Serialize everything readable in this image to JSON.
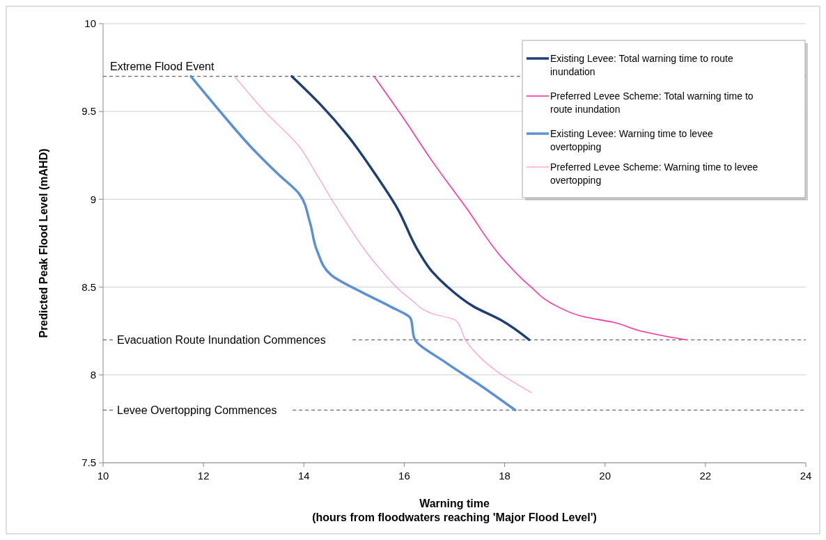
{
  "chart_data": {
    "type": "line",
    "xlabel": "Warning time\n(hours from floodwaters reaching 'Major Flood Level')",
    "ylabel": "Predicted Peak Flood Level  (mAHD)",
    "xlim": [
      10,
      24
    ],
    "xticks": [
      10,
      12,
      14,
      16,
      18,
      20,
      22,
      24
    ],
    "ylim": [
      7.5,
      10
    ],
    "yticks": [
      7.5,
      8,
      8.5,
      9,
      9.5,
      10
    ],
    "grid": "y",
    "legend": "top right",
    "marker": "none",
    "line_style": "solid",
    "series": [
      {
        "name": "Existing Levee: Total warning time to route inundation",
        "color": "#1f3f73",
        "x": [
          13.76,
          14.33,
          14.88,
          15.43,
          15.86,
          16.27,
          16.55,
          16.83,
          17.38,
          17.94,
          18.49
        ],
        "values": [
          9.7,
          9.54,
          9.36,
          9.14,
          8.95,
          8.71,
          8.59,
          8.51,
          8.39,
          8.31,
          8.2
        ]
      },
      {
        "name": "Preferred Levee Scheme: Total warning time to route inundation",
        "color": "#ff3399",
        "x": [
          15.4,
          15.99,
          16.55,
          17.24,
          17.94,
          18.49,
          19.05,
          19.6,
          20.16,
          20.71,
          21.61
        ],
        "values": [
          9.7,
          9.46,
          9.22,
          8.95,
          8.67,
          8.51,
          8.39,
          8.33,
          8.3,
          8.25,
          8.2
        ]
      },
      {
        "name": "Existing Levee: Warning time to levee overtopping",
        "color": "#5b8fd6",
        "x": [
          11.75,
          12.39,
          12.94,
          13.5,
          13.91,
          14.12,
          14.26,
          14.54,
          15.16,
          15.72,
          16.13,
          16.2,
          16.83,
          17.52,
          18.21
        ],
        "values": [
          9.7,
          9.48,
          9.3,
          9.14,
          9.03,
          8.87,
          8.71,
          8.57,
          8.47,
          8.39,
          8.32,
          8.21,
          8.07,
          7.94,
          7.8
        ]
      },
      {
        "name": "Preferred Levee Scheme: Warning time to levee overtopping",
        "color": "#ff99cc",
        "x": [
          12.62,
          13.22,
          13.91,
          14.26,
          14.75,
          15.44,
          16.13,
          16.55,
          17.03,
          17.24,
          17.8,
          18.53
        ],
        "values": [
          9.7,
          9.5,
          9.3,
          9.14,
          8.91,
          8.63,
          8.43,
          8.35,
          8.31,
          8.19,
          8.03,
          7.9
        ]
      }
    ],
    "ref_lines": [
      {
        "axis": "y",
        "value": 9.7,
        "label": "Extreme Flood Event",
        "color": "#404040",
        "line_style": "dashed"
      },
      {
        "axis": "y",
        "value": 8.2,
        "label": "Evacuation Route Inundation Commences",
        "color": "#404040",
        "line_style": "dashed"
      },
      {
        "axis": "y",
        "value": 7.8,
        "label": "Levee Overtopping Commences",
        "color": "#404040",
        "line_style": "dashed"
      }
    ]
  }
}
